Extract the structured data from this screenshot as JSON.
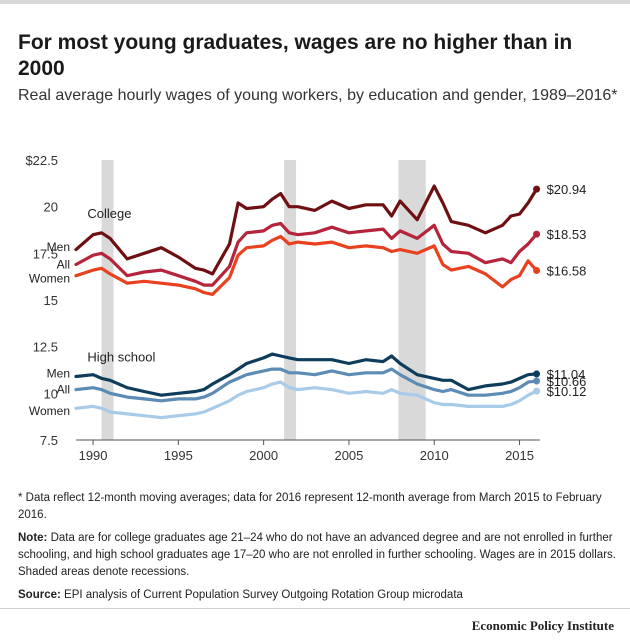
{
  "title": "For most young graduates, wages are no higher than in 2000",
  "subtitle": "Real average hourly wages of young workers, by education and gender, 1989–2016*",
  "notes": {
    "footnote": "* Data reflect 12-month moving averages; data for 2016 represent 12-month average from March 2015 to February 2016.",
    "note_label": "Note:",
    "note_text": "Data are for college graduates age 21–24 who do not have an advanced degree and are not enrolled in further schooling, and high school graduates age 17–20 who are not enrolled in further schooling. Wages are in 2015 dollars. Shaded areas denote recessions.",
    "source_label": "Source:",
    "source_text": "EPI analysis of Current Population Survey Outgoing Rotation Group microdata"
  },
  "brand": "Economic Policy Institute",
  "chart_data": {
    "type": "line",
    "xlim": [
      1989,
      2016.2
    ],
    "ylim": [
      7.5,
      22.5
    ],
    "y_ticks": [
      "$22.5",
      "20",
      "17.5",
      "15",
      "12.5",
      "10",
      "7.5"
    ],
    "y_tick_values": [
      22.5,
      20,
      17.5,
      15,
      12.5,
      10,
      7.5
    ],
    "x_ticks": [
      "1990",
      "1995",
      "2000",
      "2005",
      "2010",
      "2015"
    ],
    "x_tick_values": [
      1990,
      1995,
      2000,
      2005,
      2010,
      2015
    ],
    "grid": false,
    "recessions": [
      [
        1990.5,
        1991.2
      ],
      [
        2001.2,
        2001.9
      ],
      [
        2007.9,
        2009.5
      ]
    ],
    "recession_color": "#d9d9d9",
    "group_labels": [
      {
        "text": "College",
        "x": 1989.2,
        "y": 19.4
      },
      {
        "text": "High school",
        "x": 1989.2,
        "y": 11.7
      }
    ],
    "x": [
      1989.0,
      1990.0,
      1990.5,
      1991.0,
      1992.0,
      1993.0,
      1994.0,
      1995.0,
      1996.0,
      1996.5,
      1997.0,
      1998.0,
      1998.5,
      1999.0,
      2000.0,
      2000.5,
      2001.0,
      2001.5,
      2002.0,
      2003.0,
      2004.0,
      2005.0,
      2006.0,
      2007.0,
      2007.5,
      2008.0,
      2009.0,
      2010.0,
      2010.5,
      2011.0,
      2012.0,
      2013.0,
      2014.0,
      2014.5,
      2015.0,
      2015.5,
      2016.0
    ],
    "series": [
      {
        "name": "Men",
        "group": "College",
        "color": "#6e1011",
        "end_label": "$20.94",
        "values": [
          17.7,
          18.5,
          18.6,
          18.3,
          17.2,
          17.5,
          17.8,
          17.3,
          16.7,
          16.6,
          16.4,
          18.0,
          20.2,
          19.9,
          20.0,
          20.4,
          20.7,
          20.0,
          20.0,
          19.8,
          20.3,
          19.9,
          20.1,
          20.1,
          19.5,
          20.3,
          19.3,
          21.1,
          20.2,
          19.2,
          19.0,
          18.6,
          19.0,
          19.5,
          19.6,
          20.2,
          20.94
        ]
      },
      {
        "name": "All",
        "group": "College",
        "color": "#b5243a",
        "end_label": "$18.53",
        "values": [
          16.9,
          17.4,
          17.5,
          17.2,
          16.3,
          16.5,
          16.6,
          16.3,
          16.0,
          15.8,
          15.8,
          16.8,
          18.1,
          18.6,
          18.7,
          19.0,
          19.1,
          18.6,
          18.5,
          18.6,
          18.9,
          18.6,
          18.7,
          18.8,
          18.3,
          18.7,
          18.3,
          19.0,
          18.0,
          17.6,
          17.5,
          17.0,
          17.2,
          17.0,
          17.6,
          18.0,
          18.53
        ]
      },
      {
        "name": "Women",
        "group": "College",
        "color": "#e9411f",
        "end_label": "$16.58",
        "values": [
          16.3,
          16.6,
          16.7,
          16.4,
          15.9,
          16.0,
          15.9,
          15.8,
          15.6,
          15.4,
          15.3,
          16.2,
          17.4,
          17.8,
          17.9,
          18.2,
          18.4,
          18.0,
          18.1,
          18.0,
          18.1,
          17.8,
          17.9,
          17.8,
          17.6,
          17.7,
          17.5,
          17.9,
          16.9,
          16.6,
          16.8,
          16.4,
          15.7,
          16.1,
          16.3,
          17.1,
          16.58
        ]
      },
      {
        "name": "Men",
        "group": "High school",
        "color": "#0e3d5c",
        "end_label": "$11.04",
        "values": [
          10.9,
          11.0,
          10.8,
          10.7,
          10.3,
          10.1,
          9.9,
          10.0,
          10.1,
          10.2,
          10.5,
          11.0,
          11.3,
          11.6,
          11.9,
          12.1,
          12.0,
          11.9,
          11.8,
          11.8,
          11.8,
          11.6,
          11.8,
          11.7,
          12.0,
          11.6,
          11.0,
          10.8,
          10.7,
          10.7,
          10.2,
          10.4,
          10.5,
          10.6,
          10.8,
          11.0,
          11.04
        ]
      },
      {
        "name": "All",
        "group": "High school",
        "color": "#5c8bb5",
        "end_label": "$10.66",
        "values": [
          10.2,
          10.3,
          10.2,
          10.0,
          9.8,
          9.7,
          9.6,
          9.7,
          9.7,
          9.8,
          10.0,
          10.6,
          10.8,
          11.0,
          11.2,
          11.3,
          11.3,
          11.1,
          11.1,
          11.0,
          11.2,
          11.0,
          11.1,
          11.1,
          11.3,
          11.0,
          10.5,
          10.2,
          10.1,
          10.2,
          9.9,
          9.9,
          10.0,
          10.1,
          10.3,
          10.6,
          10.66
        ]
      },
      {
        "name": "Women",
        "group": "High school",
        "color": "#a9cbea",
        "end_label": "$10.12",
        "values": [
          9.2,
          9.3,
          9.2,
          9.0,
          8.9,
          8.8,
          8.7,
          8.8,
          8.9,
          9.0,
          9.2,
          9.6,
          9.9,
          10.1,
          10.3,
          10.5,
          10.6,
          10.3,
          10.2,
          10.3,
          10.2,
          10.0,
          10.1,
          10.0,
          10.2,
          10.0,
          9.9,
          9.5,
          9.4,
          9.4,
          9.3,
          9.3,
          9.3,
          9.4,
          9.6,
          9.9,
          10.12
        ]
      }
    ]
  }
}
